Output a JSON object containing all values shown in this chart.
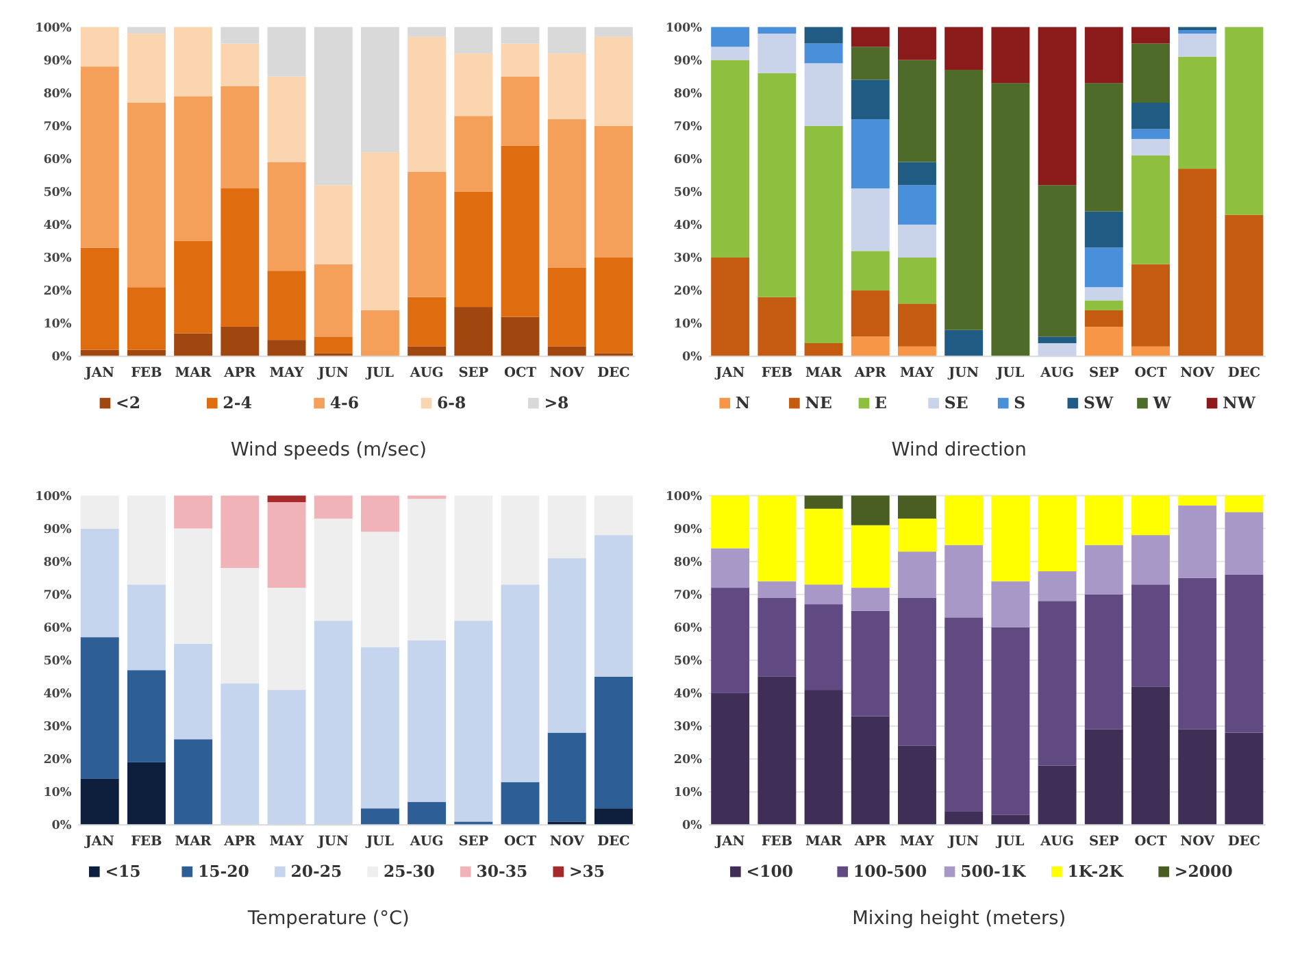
{
  "chart_data": [
    {
      "type": "bar",
      "stacked": true,
      "title": "Wind speeds (m/sec)",
      "legend": "bottom",
      "grid": false,
      "categories": [
        "JAN",
        "FEB",
        "MAR",
        "APR",
        "MAY",
        "JUN",
        "JUL",
        "AUG",
        "SEP",
        "OCT",
        "NOV",
        "DEC"
      ],
      "ylim": [
        0,
        100
      ],
      "yticks": [
        {
          "value": 0,
          "label": "0%"
        },
        {
          "value": 10,
          "label": "10%"
        },
        {
          "value": 20,
          "label": "20%"
        },
        {
          "value": 30,
          "label": "30%"
        },
        {
          "value": 40,
          "label": "40%"
        },
        {
          "value": 50,
          "label": "50%"
        },
        {
          "value": 60,
          "label": "60%"
        },
        {
          "value": 70,
          "label": "70%"
        },
        {
          "value": 80,
          "label": "80%"
        },
        {
          "value": 90,
          "label": "90%"
        },
        {
          "value": 100,
          "label": "100%"
        }
      ],
      "series": [
        {
          "name": "<2",
          "color": "#a0470f",
          "values": [
            2,
            2,
            7,
            9,
            5,
            1,
            0,
            3,
            15,
            12,
            3,
            1
          ]
        },
        {
          "name": "2-4",
          "color": "#e06c10",
          "values": [
            31,
            19,
            28,
            42,
            21,
            5,
            0,
            15,
            35,
            52,
            24,
            29
          ]
        },
        {
          "name": "4-6",
          "color": "#f4a05a",
          "values": [
            55,
            56,
            44,
            31,
            33,
            22,
            14,
            38,
            23,
            21,
            45,
            40
          ]
        },
        {
          "name": "6-8",
          "color": "#fbd5b0",
          "values": [
            12,
            21,
            21,
            13,
            26,
            24,
            48,
            41,
            19,
            10,
            20,
            27
          ]
        },
        {
          "name": ">8",
          "color": "#d9d9d9",
          "values": [
            0,
            2,
            0,
            5,
            15,
            48,
            38,
            3,
            8,
            5,
            8,
            3
          ]
        }
      ]
    },
    {
      "type": "bar",
      "stacked": true,
      "title": "Wind direction",
      "legend": "bottom",
      "grid": false,
      "categories": [
        "JAN",
        "FEB",
        "MAR",
        "APR",
        "MAY",
        "JUN",
        "JUL",
        "AUG",
        "SEP",
        "OCT",
        "NOV",
        "DEC"
      ],
      "ylim": [
        0,
        100
      ],
      "yticks": [
        {
          "value": 0,
          "label": "0%"
        },
        {
          "value": 10,
          "label": "10%"
        },
        {
          "value": 20,
          "label": "20%"
        },
        {
          "value": 30,
          "label": "30%"
        },
        {
          "value": 40,
          "label": "40%"
        },
        {
          "value": 50,
          "label": "50%"
        },
        {
          "value": 60,
          "label": "60%"
        },
        {
          "value": 70,
          "label": "70%"
        },
        {
          "value": 80,
          "label": "80%"
        },
        {
          "value": 90,
          "label": "90%"
        },
        {
          "value": 100,
          "label": "100%"
        }
      ],
      "series": [
        {
          "name": "N",
          "color": "#f79646",
          "values": [
            0,
            0,
            0,
            6,
            3,
            0,
            0,
            0,
            9,
            3,
            0,
            0
          ]
        },
        {
          "name": "NE",
          "color": "#c55a11",
          "values": [
            30,
            18,
            4,
            14,
            13,
            0,
            0,
            0,
            5,
            25,
            57,
            43
          ]
        },
        {
          "name": "E",
          "color": "#8fbf3f",
          "values": [
            60,
            68,
            66,
            12,
            14,
            0,
            0,
            0,
            3,
            33,
            34,
            57
          ]
        },
        {
          "name": "SE",
          "color": "#c9d3ea",
          "values": [
            4,
            12,
            19,
            19,
            10,
            0,
            0,
            4,
            4,
            5,
            7,
            0
          ]
        },
        {
          "name": "S",
          "color": "#4a8fd9",
          "values": [
            6,
            2,
            6,
            21,
            12,
            0,
            0,
            0,
            12,
            3,
            1,
            0
          ]
        },
        {
          "name": "SW",
          "color": "#1f5b82",
          "values": [
            0,
            0,
            5,
            12,
            7,
            8,
            0,
            2,
            11,
            8,
            1,
            0
          ]
        },
        {
          "name": "W",
          "color": "#4e6b2a",
          "values": [
            0,
            0,
            0,
            10,
            31,
            79,
            83,
            46,
            39,
            18,
            0,
            0
          ]
        },
        {
          "name": "NW",
          "color": "#8b1a1a",
          "values": [
            0,
            0,
            0,
            6,
            10,
            13,
            17,
            48,
            17,
            5,
            0,
            0
          ]
        }
      ]
    },
    {
      "type": "bar",
      "stacked": true,
      "title": "Temperature (°C)",
      "legend": "bottom",
      "grid": false,
      "categories": [
        "JAN",
        "FEB",
        "MAR",
        "APR",
        "MAY",
        "JUN",
        "JUL",
        "AUG",
        "SEP",
        "OCT",
        "NOV",
        "DEC"
      ],
      "ylim": [
        0,
        100
      ],
      "yticks": [
        {
          "value": 0,
          "label": "0%"
        },
        {
          "value": 10,
          "label": "10%"
        },
        {
          "value": 20,
          "label": "20%"
        },
        {
          "value": 30,
          "label": "30%"
        },
        {
          "value": 40,
          "label": "40%"
        },
        {
          "value": 50,
          "label": "50%"
        },
        {
          "value": 60,
          "label": "60%"
        },
        {
          "value": 70,
          "label": "70%"
        },
        {
          "value": 80,
          "label": "80%"
        },
        {
          "value": 90,
          "label": "90%"
        },
        {
          "value": 100,
          "label": "100%"
        }
      ],
      "series": [
        {
          "name": "<15",
          "color": "#0d1f3c",
          "values": [
            14,
            19,
            0,
            0,
            0,
            0,
            0,
            0,
            0,
            0,
            1,
            5
          ]
        },
        {
          "name": "15-20",
          "color": "#2e5e96",
          "values": [
            43,
            28,
            26,
            0,
            0,
            0,
            5,
            7,
            1,
            13,
            27,
            40
          ]
        },
        {
          "name": "20-25",
          "color": "#c5d5ee",
          "values": [
            33,
            26,
            29,
            43,
            41,
            62,
            49,
            49,
            61,
            60,
            53,
            43
          ]
        },
        {
          "name": "25-30",
          "color": "#eeeeee",
          "values": [
            10,
            27,
            35,
            35,
            31,
            31,
            35,
            43,
            38,
            27,
            19,
            12
          ]
        },
        {
          "name": "30-35",
          "color": "#f0b3b8",
          "values": [
            0,
            0,
            10,
            22,
            26,
            7,
            11,
            1,
            0,
            0,
            0,
            0
          ]
        },
        {
          "name": ">35",
          "color": "#a52a2a",
          "values": [
            0,
            0,
            0,
            0,
            2,
            0,
            0,
            0,
            0,
            0,
            0,
            0
          ]
        }
      ]
    },
    {
      "type": "bar",
      "stacked": true,
      "title": "Mixing height (meters)",
      "legend": "bottom",
      "grid": "y",
      "categories": [
        "JAN",
        "FEB",
        "MAR",
        "APR",
        "MAY",
        "JUN",
        "JUL",
        "AUG",
        "SEP",
        "OCT",
        "NOV",
        "DEC"
      ],
      "ylim": [
        0,
        100
      ],
      "yticks": [
        {
          "value": 0,
          "label": "0%"
        },
        {
          "value": 10,
          "label": "10%"
        },
        {
          "value": 20,
          "label": "20%"
        },
        {
          "value": 30,
          "label": "30%"
        },
        {
          "value": 40,
          "label": "40%"
        },
        {
          "value": 50,
          "label": "50%"
        },
        {
          "value": 60,
          "label": "60%"
        },
        {
          "value": 70,
          "label": "70%"
        },
        {
          "value": 80,
          "label": "80%"
        },
        {
          "value": 90,
          "label": "90%"
        },
        {
          "value": 100,
          "label": "100%"
        }
      ],
      "series": [
        {
          "name": "<100",
          "color": "#3f2e56",
          "values": [
            40,
            45,
            41,
            33,
            24,
            4,
            3,
            18,
            29,
            42,
            29,
            28
          ]
        },
        {
          "name": "100-500",
          "color": "#614a82",
          "values": [
            32,
            24,
            26,
            32,
            45,
            59,
            57,
            50,
            41,
            31,
            46,
            48
          ]
        },
        {
          "name": "500-1K",
          "color": "#a898c8",
          "values": [
            12,
            5,
            6,
            7,
            14,
            22,
            14,
            9,
            15,
            15,
            22,
            19
          ]
        },
        {
          "name": "1K-2K",
          "color": "#ffff00",
          "values": [
            16,
            26,
            23,
            19,
            10,
            15,
            26,
            23,
            15,
            12,
            3,
            5
          ]
        },
        {
          "name": ">2000",
          "color": "#4a5e23",
          "values": [
            0,
            0,
            4,
            9,
            7,
            0,
            0,
            0,
            0,
            0,
            0,
            0
          ]
        }
      ]
    }
  ]
}
